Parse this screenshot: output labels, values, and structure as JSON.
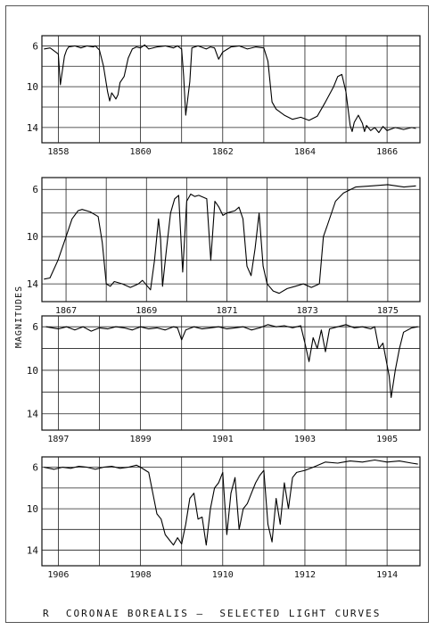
{
  "caption": "R  CORONAE BOREALIS —  SELECTED LIGHT CURVES",
  "chart_data": {
    "type": "line",
    "ylabel": "MAGNITUDES",
    "y_inverted": true,
    "panels": [
      {
        "ylim": [
          15.5,
          5
        ],
        "yticks": [
          6,
          10,
          14
        ],
        "xlim": [
          1857.6,
          1866.8
        ],
        "xtick_labels": [
          "1858",
          "1860",
          "1862",
          "1864",
          "1866"
        ],
        "xtick_values": [
          1858,
          1860,
          1862,
          1864,
          1866
        ],
        "series": [
          {
            "x": [
              1857.65,
              1857.8,
              1857.9,
              1858.0,
              1858.05,
              1858.15,
              1858.2,
              1858.25,
              1858.4,
              1858.55,
              1858.7,
              1858.85,
              1858.9,
              1859.0,
              1859.1,
              1859.2,
              1859.25,
              1859.3,
              1859.4,
              1859.45,
              1859.5,
              1859.6,
              1859.7,
              1859.8,
              1859.9,
              1860.0,
              1860.1,
              1860.2,
              1860.4,
              1860.6,
              1860.8,
              1860.9,
              1861.0,
              1861.05,
              1861.1,
              1861.2,
              1861.25,
              1861.4,
              1861.6,
              1861.7,
              1861.8,
              1861.9,
              1862.0,
              1862.2,
              1862.4,
              1862.6,
              1862.8,
              1863.0,
              1863.1,
              1863.2,
              1863.3,
              1863.5,
              1863.7,
              1863.9,
              1864.1,
              1864.3,
              1864.5,
              1864.7,
              1864.8,
              1864.9,
              1865.0,
              1865.1,
              1865.15,
              1865.2,
              1865.3,
              1865.4,
              1865.45,
              1865.5,
              1865.6,
              1865.7,
              1865.8,
              1865.9,
              1866.0,
              1866.2,
              1866.4,
              1866.6,
              1866.7
            ],
            "y": [
              6.3,
              6.2,
              6.5,
              6.8,
              9.8,
              7.0,
              6.4,
              6.1,
              6.0,
              6.2,
              6.0,
              6.1,
              6.0,
              6.4,
              8.0,
              10.5,
              11.4,
              10.6,
              11.2,
              10.8,
              9.6,
              9.0,
              7.2,
              6.3,
              6.1,
              6.2,
              5.9,
              6.3,
              6.1,
              6.0,
              6.2,
              6.0,
              6.3,
              9.0,
              12.8,
              9.5,
              6.2,
              6.0,
              6.3,
              6.1,
              6.2,
              7.3,
              6.6,
              6.1,
              6.0,
              6.3,
              6.1,
              6.2,
              7.5,
              11.5,
              12.2,
              12.8,
              13.2,
              13.0,
              13.3,
              12.9,
              11.5,
              10.0,
              9.0,
              8.8,
              10.5,
              13.8,
              14.4,
              13.5,
              12.8,
              13.6,
              14.4,
              13.8,
              14.3,
              14.0,
              14.5,
              13.9,
              14.3,
              14.0,
              14.2,
              14.0,
              14.1
            ]
          }
        ]
      },
      {
        "ylim": [
          15.5,
          5
        ],
        "yticks": [
          6,
          10,
          14
        ],
        "xlim": [
          1866.4,
          1875.8
        ],
        "xtick_labels": [
          "1867",
          "1869",
          "1871",
          "1873",
          "1875"
        ],
        "xtick_values": [
          1867,
          1869,
          1871,
          1873,
          1875
        ],
        "series": [
          {
            "x": [
              1866.45,
              1866.6,
              1866.8,
              1867.0,
              1867.15,
              1867.3,
              1867.4,
              1867.6,
              1867.8,
              1867.9,
              1868.0,
              1868.1,
              1868.2,
              1868.4,
              1868.6,
              1868.8,
              1868.9,
              1869.1,
              1869.2,
              1869.3,
              1869.35,
              1869.4,
              1869.5,
              1869.6,
              1869.7,
              1869.8,
              1869.9,
              1870.0,
              1870.1,
              1870.2,
              1870.3,
              1870.5,
              1870.6,
              1870.7,
              1870.8,
              1870.9,
              1871.0,
              1871.2,
              1871.3,
              1871.4,
              1871.5,
              1871.6,
              1871.7,
              1871.8,
              1871.9,
              1872.0,
              1872.05,
              1872.15,
              1872.3,
              1872.5,
              1872.7,
              1872.9,
              1873.1,
              1873.3,
              1873.4,
              1873.5,
              1873.7,
              1873.9,
              1874.2,
              1874.6,
              1875.0,
              1875.4,
              1875.7
            ],
            "y": [
              13.6,
              13.5,
              12.0,
              10.0,
              8.5,
              7.8,
              7.7,
              7.9,
              8.3,
              10.5,
              14.0,
              14.2,
              13.8,
              14.0,
              14.3,
              14.0,
              13.7,
              14.5,
              12.0,
              8.5,
              10.2,
              14.2,
              11.0,
              8.0,
              6.8,
              6.5,
              13.0,
              7.0,
              6.4,
              6.6,
              6.5,
              6.8,
              12.0,
              7.0,
              7.5,
              8.2,
              8.0,
              7.8,
              7.5,
              8.5,
              12.5,
              13.3,
              11.0,
              8.0,
              12.5,
              14.0,
              14.2,
              14.6,
              14.8,
              14.4,
              14.2,
              14.0,
              14.3,
              14.0,
              10.0,
              9.0,
              7.0,
              6.3,
              5.8,
              5.7,
              5.6,
              5.8,
              5.7
            ]
          }
        ]
      },
      {
        "ylim": [
          15.5,
          5
        ],
        "yticks": [
          6,
          10,
          14
        ],
        "xlim": [
          1896.6,
          1905.8
        ],
        "xtick_labels": [
          "1897",
          "1899",
          "1901",
          "1903",
          "1905"
        ],
        "xtick_values": [
          1897,
          1899,
          1901,
          1903,
          1905
        ],
        "series": [
          {
            "x": [
              1896.7,
              1897.0,
              1897.2,
              1897.4,
              1897.6,
              1897.8,
              1898.0,
              1898.2,
              1898.4,
              1898.6,
              1898.8,
              1899.0,
              1899.2,
              1899.4,
              1899.6,
              1899.8,
              1899.9,
              1900.0,
              1900.1,
              1900.3,
              1900.5,
              1900.7,
              1900.9,
              1901.1,
              1901.3,
              1901.5,
              1901.7,
              1901.9,
              1902.1,
              1902.3,
              1902.5,
              1902.7,
              1902.8,
              1902.9,
              1903.0,
              1903.1,
              1903.2,
              1903.3,
              1903.4,
              1903.5,
              1903.6,
              1903.8,
              1904.0,
              1904.2,
              1904.4,
              1904.6,
              1904.7,
              1904.8,
              1904.9,
              1905.0,
              1905.05,
              1905.1,
              1905.2,
              1905.3,
              1905.4,
              1905.6,
              1905.75
            ],
            "y": [
              6.0,
              6.2,
              6.0,
              6.3,
              6.0,
              6.4,
              6.1,
              6.2,
              6.0,
              6.1,
              6.3,
              6.0,
              6.2,
              6.1,
              6.3,
              6.0,
              6.1,
              7.2,
              6.3,
              6.0,
              6.2,
              6.1,
              6.0,
              6.2,
              6.1,
              6.0,
              6.3,
              6.1,
              5.8,
              6.0,
              5.9,
              6.1,
              6.0,
              5.9,
              7.5,
              9.2,
              7.0,
              8.0,
              6.3,
              8.3,
              6.2,
              6.0,
              5.8,
              6.1,
              6.0,
              6.2,
              6.0,
              8.0,
              7.5,
              9.5,
              10.5,
              12.5,
              10.0,
              8.0,
              6.5,
              6.1,
              6.0
            ]
          }
        ]
      },
      {
        "ylim": [
          15.5,
          5
        ],
        "yticks": [
          6,
          10,
          14
        ],
        "xlim": [
          1905.6,
          1914.8
        ],
        "xtick_labels": [
          "1906",
          "1908",
          "1910",
          "1912",
          "1914"
        ],
        "xtick_values": [
          1906,
          1908,
          1910,
          1912,
          1914
        ],
        "series": [
          {
            "x": [
              1905.65,
              1905.9,
              1906.1,
              1906.3,
              1906.5,
              1906.7,
              1906.9,
              1907.1,
              1907.3,
              1907.5,
              1907.7,
              1907.9,
              1908.0,
              1908.2,
              1908.3,
              1908.4,
              1908.5,
              1908.6,
              1908.7,
              1908.8,
              1908.9,
              1909.0,
              1909.1,
              1909.2,
              1909.3,
              1909.4,
              1909.5,
              1909.6,
              1909.7,
              1909.8,
              1909.9,
              1910.0,
              1910.1,
              1910.2,
              1910.3,
              1910.4,
              1910.5,
              1910.6,
              1910.7,
              1910.8,
              1910.9,
              1911.0,
              1911.1,
              1911.2,
              1911.3,
              1911.4,
              1911.5,
              1911.6,
              1911.7,
              1911.8,
              1912.0,
              1912.2,
              1912.5,
              1912.8,
              1913.1,
              1913.4,
              1913.7,
              1914.0,
              1914.3,
              1914.6,
              1914.75
            ],
            "y": [
              6.0,
              6.2,
              6.0,
              6.1,
              5.9,
              6.0,
              6.2,
              6.0,
              5.9,
              6.1,
              6.0,
              5.8,
              6.0,
              6.5,
              8.5,
              10.5,
              11.0,
              12.5,
              13.0,
              13.5,
              12.8,
              13.4,
              11.5,
              9.0,
              8.5,
              11.0,
              10.8,
              13.5,
              10.0,
              8.0,
              7.5,
              6.5,
              12.5,
              8.5,
              7.0,
              12.0,
              10.0,
              9.5,
              8.5,
              7.5,
              6.8,
              6.3,
              11.5,
              13.2,
              9.0,
              11.5,
              7.5,
              10.0,
              7.0,
              6.5,
              6.3,
              6.0,
              5.5,
              5.6,
              5.4,
              5.5,
              5.3,
              5.5,
              5.4,
              5.6,
              5.7
            ]
          }
        ]
      }
    ]
  }
}
